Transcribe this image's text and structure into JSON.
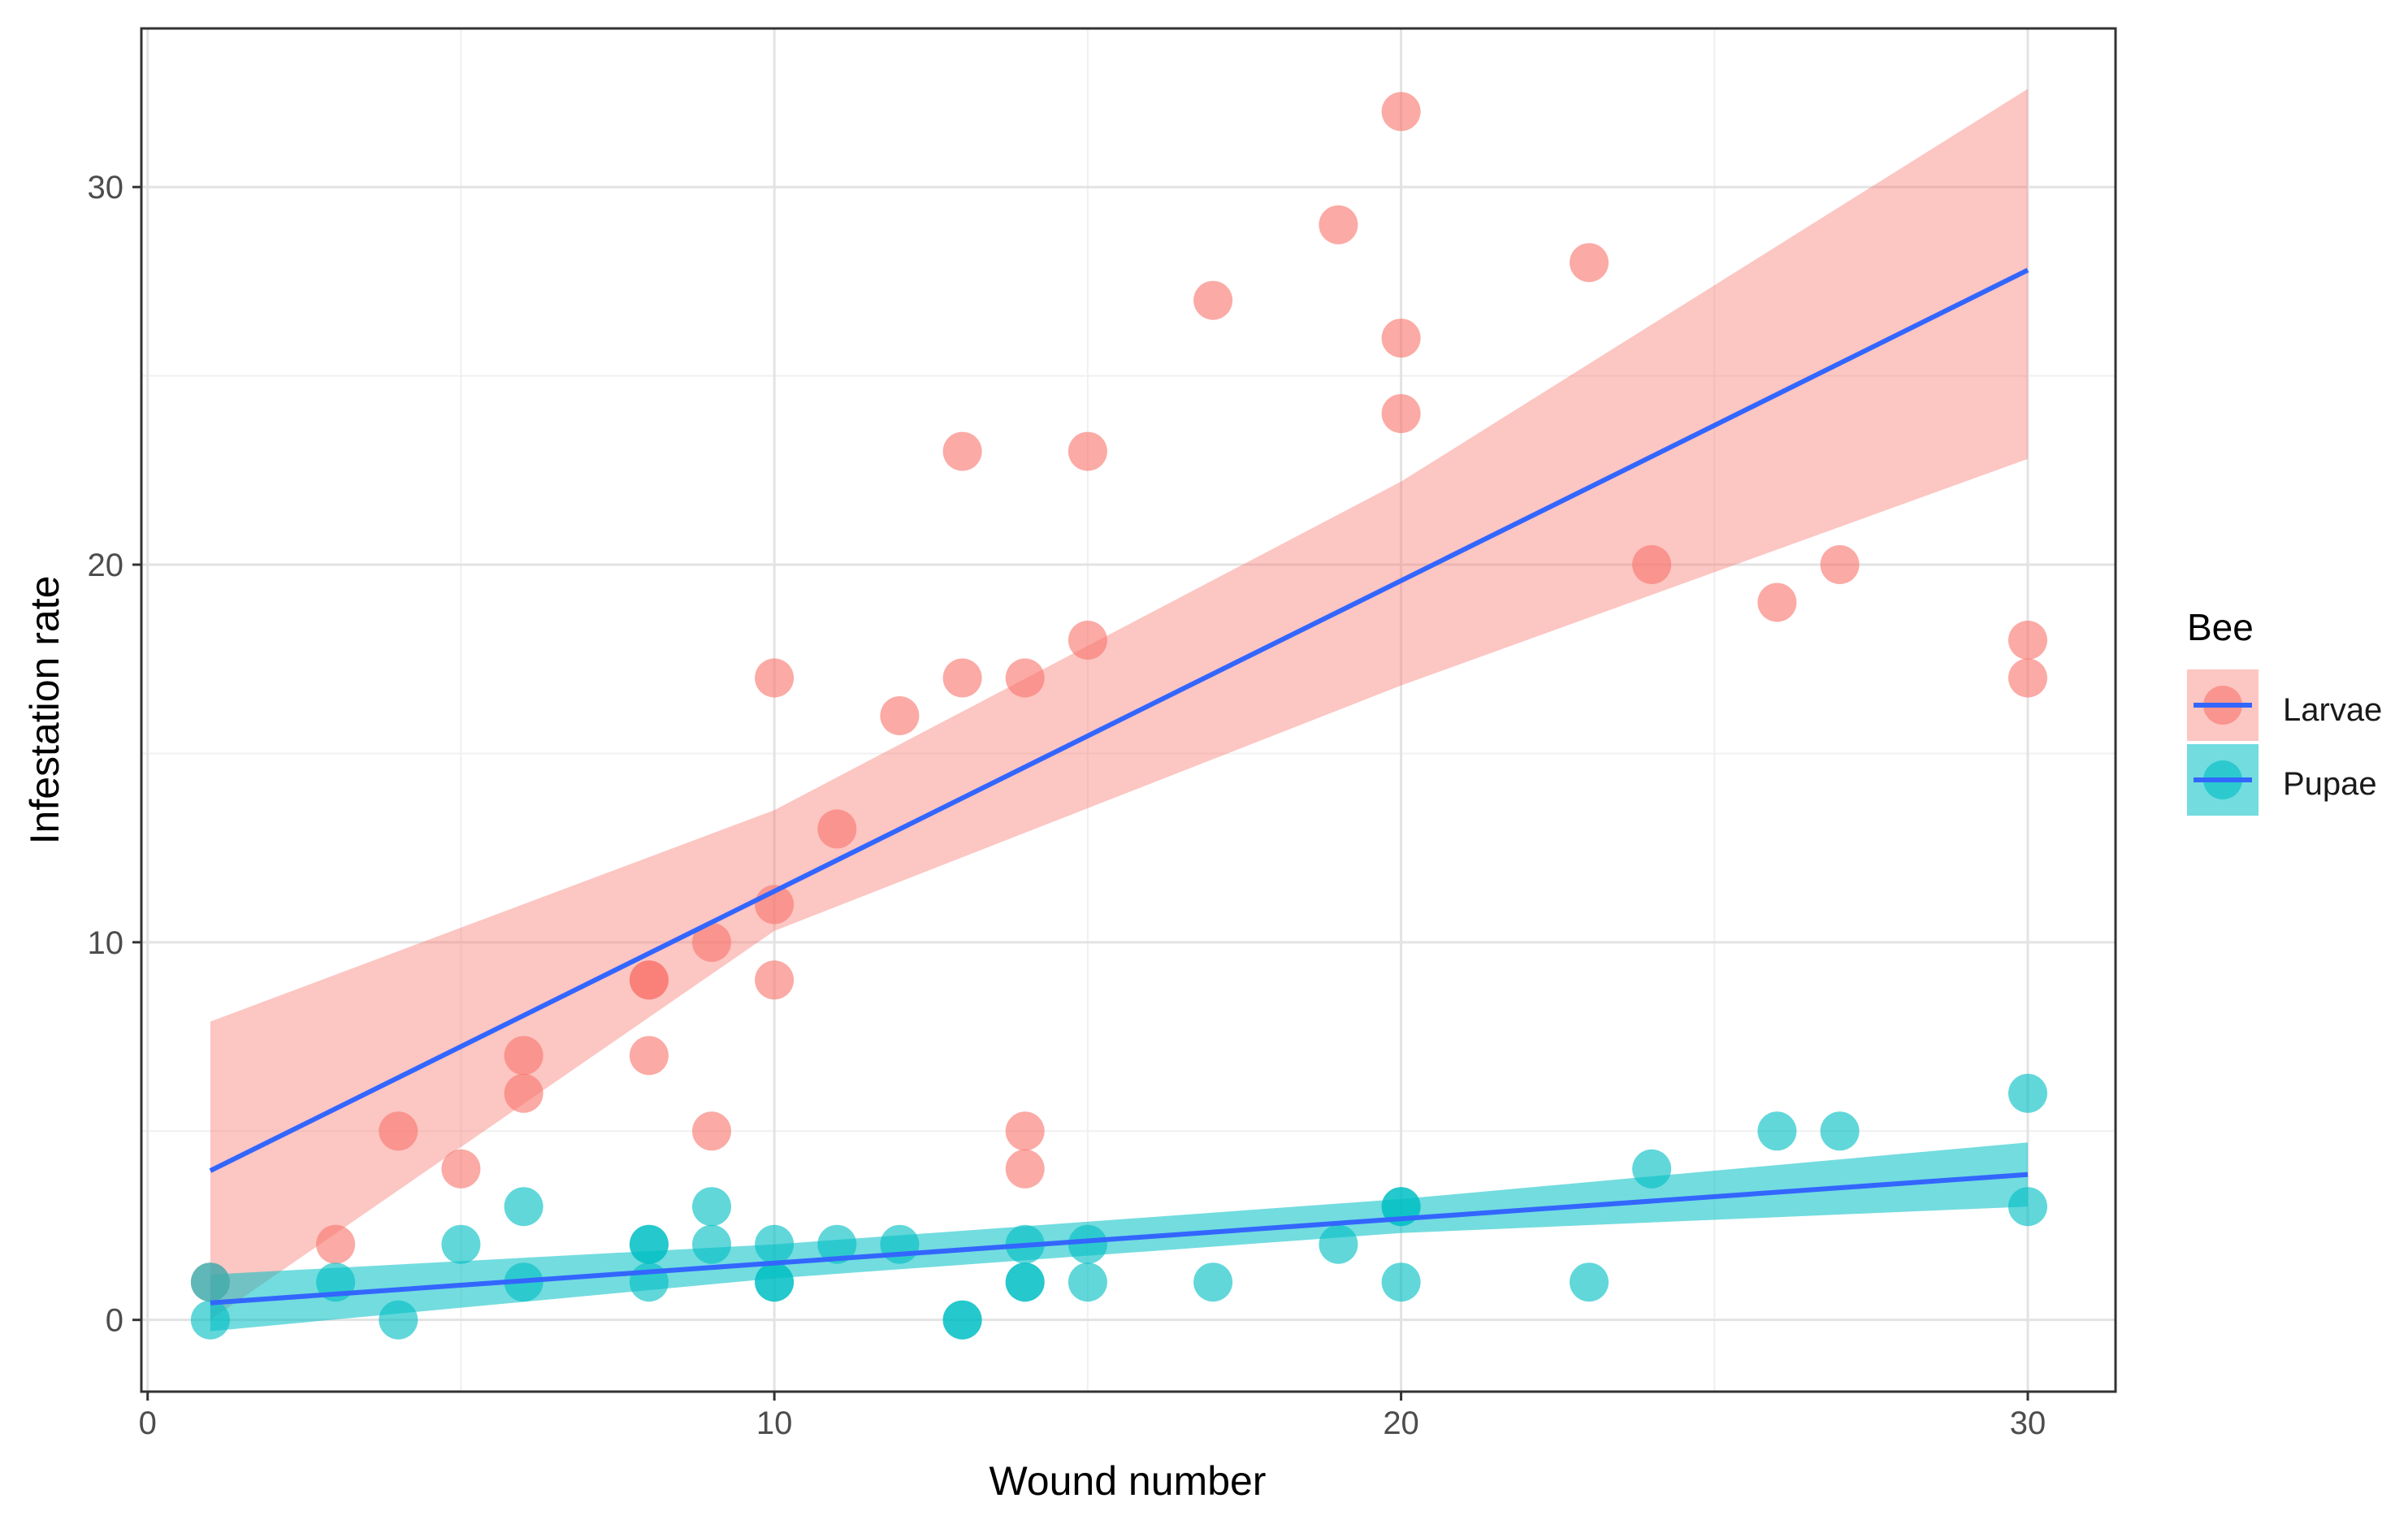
{
  "chart_data": {
    "type": "scatter",
    "title": "",
    "xlabel": "Wound number",
    "ylabel": "Infestation rate",
    "xlim": [
      -0.1,
      31.4
    ],
    "ylim": [
      -1.9,
      34.2
    ],
    "x_ticks": [
      0,
      10,
      20,
      30
    ],
    "y_ticks": [
      0,
      10,
      20,
      30
    ],
    "x_minor": [
      5,
      15,
      25
    ],
    "y_minor": [
      5,
      15,
      25
    ],
    "grid": true,
    "legend": {
      "title": "Bee",
      "position": "right"
    },
    "series": [
      {
        "name": "Larvae",
        "point_color": "#F8766D",
        "ribbon_color": "#F8766D",
        "points": [
          [
            1,
            1
          ],
          [
            3,
            2
          ],
          [
            4,
            5
          ],
          [
            5,
            4
          ],
          [
            6,
            7
          ],
          [
            6,
            6
          ],
          [
            8,
            9
          ],
          [
            8,
            9
          ],
          [
            8,
            7
          ],
          [
            9,
            10
          ],
          [
            9,
            5
          ],
          [
            10,
            17
          ],
          [
            10,
            11
          ],
          [
            10,
            9
          ],
          [
            11,
            13
          ],
          [
            12,
            16
          ],
          [
            13,
            23
          ],
          [
            13,
            17
          ],
          [
            14,
            17
          ],
          [
            14,
            5
          ],
          [
            14,
            4
          ],
          [
            15,
            23
          ],
          [
            15,
            18
          ],
          [
            17,
            27
          ],
          [
            19,
            29
          ],
          [
            20,
            32
          ],
          [
            20,
            26
          ],
          [
            20,
            24
          ],
          [
            23,
            28
          ],
          [
            24,
            20
          ],
          [
            26,
            19
          ],
          [
            27,
            20
          ],
          [
            30,
            18
          ],
          [
            30,
            17
          ]
        ],
        "fit": {
          "x": [
            1,
            30
          ],
          "y": [
            3.95,
            27.8
          ]
        },
        "ribbon": {
          "x": [
            1,
            10,
            20,
            30
          ],
          "lower": [
            0.0,
            10.3,
            16.8,
            22.8
          ],
          "upper": [
            7.9,
            13.5,
            22.2,
            32.6
          ]
        }
      },
      {
        "name": "Pupae",
        "point_color": "#00BFC4",
        "ribbon_color": "#00BFC4",
        "points": [
          [
            1,
            1
          ],
          [
            1,
            0
          ],
          [
            3,
            1
          ],
          [
            4,
            0
          ],
          [
            5,
            2
          ],
          [
            6,
            3
          ],
          [
            6,
            1
          ],
          [
            8,
            2
          ],
          [
            8,
            2
          ],
          [
            8,
            1
          ],
          [
            9,
            3
          ],
          [
            9,
            2
          ],
          [
            10,
            2
          ],
          [
            10,
            1
          ],
          [
            10,
            1
          ],
          [
            11,
            2
          ],
          [
            12,
            2
          ],
          [
            13,
            0
          ],
          [
            13,
            0
          ],
          [
            14,
            2
          ],
          [
            14,
            1
          ],
          [
            14,
            1
          ],
          [
            15,
            2
          ],
          [
            15,
            1
          ],
          [
            17,
            1
          ],
          [
            19,
            2
          ],
          [
            20,
            3
          ],
          [
            20,
            3
          ],
          [
            20,
            1
          ],
          [
            23,
            1
          ],
          [
            24,
            4
          ],
          [
            26,
            5
          ],
          [
            27,
            5
          ],
          [
            30,
            6
          ],
          [
            30,
            3
          ]
        ],
        "fit": {
          "x": [
            1,
            30
          ],
          "y": [
            0.45,
            3.85
          ]
        },
        "ribbon": {
          "x": [
            1,
            10,
            20,
            30
          ],
          "lower": [
            -0.3,
            1.1,
            2.3,
            3.0
          ],
          "upper": [
            1.2,
            2.0,
            3.2,
            4.7
          ]
        }
      }
    ],
    "fit_line_color": "#3366FF"
  }
}
